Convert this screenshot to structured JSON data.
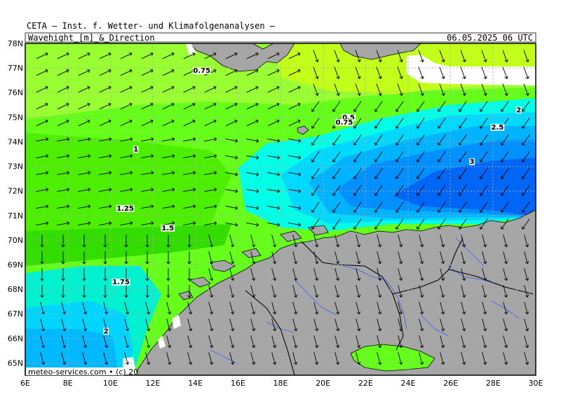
{
  "header": {
    "title": "CETA — Inst. f. Wetter- und Klimafolgenanalysen —",
    "left_label": "Wavehight_[m]_&_Direction",
    "right_label": "06.05.2025 06 UTC"
  },
  "footer": {
    "credit": "meteo-services.com • (c) 20"
  },
  "axes": {
    "lon_labels": [
      "6E",
      "8E",
      "10E",
      "12E",
      "14E",
      "16E",
      "18E",
      "20E",
      "22E",
      "24E",
      "26E",
      "28E",
      "30E"
    ],
    "lat_labels": [
      "78N",
      "77N",
      "76N",
      "75N",
      "74N",
      "73N",
      "72N",
      "71N",
      "70N",
      "69N",
      "68N",
      "67N",
      "66N",
      "65N"
    ]
  },
  "contour_labels": [
    {
      "text": "0.75",
      "lon": 14.3,
      "lat": 76.8
    },
    {
      "text": "1",
      "lon": 11.2,
      "lat": 73.6
    },
    {
      "text": "1.25",
      "lon": 10.7,
      "lat": 71.2
    },
    {
      "text": "1.5",
      "lon": 12.7,
      "lat": 70.4
    },
    {
      "text": "1.75",
      "lon": 10.5,
      "lat": 68.2
    },
    {
      "text": "2",
      "lon": 9.8,
      "lat": 66.2
    },
    {
      "text": "0.5",
      "lon": 21.2,
      "lat": 74.9
    },
    {
      "text": "0.75",
      "lon": 21.0,
      "lat": 74.7
    },
    {
      "text": "2",
      "lon": 29.2,
      "lat": 75.2
    },
    {
      "text": "2.5",
      "lon": 28.2,
      "lat": 74.5
    },
    {
      "text": "3",
      "lon": 27.0,
      "lat": 73.1
    }
  ],
  "colors": {
    "green_light": "#8cff33",
    "green": "#33e600",
    "green_yellow": "#b3ff1a",
    "cyan": "#00ffe6",
    "cyan2": "#00d9ff",
    "blue1": "#00b3ff",
    "blue2": "#0080ff",
    "blue3": "#0059f2",
    "land": "#a6a6a6"
  }
}
